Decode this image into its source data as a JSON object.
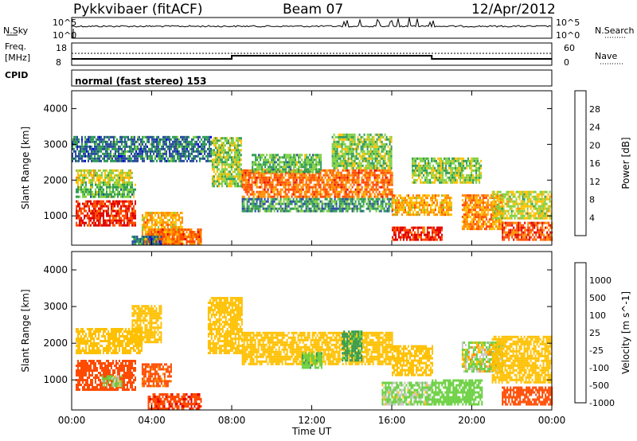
{
  "header": {
    "title": "Pykkvibaer (fitACF)",
    "beam": "Beam 07",
    "date": "12/Apr/2012"
  },
  "strips": {
    "nsky_label": "N.Sky",
    "nsky_ticks": [
      "10^5",
      "10^0"
    ],
    "nsearch_label": "N.Search",
    "nsearch_ticks": [
      "10^5",
      "10^0"
    ],
    "freq_label": "Freq.",
    "freq_unit": "[MHz]",
    "freq_ticks": [
      "18",
      "8"
    ],
    "nave_label": "Nave",
    "nave_ticks": [
      "60",
      "0"
    ],
    "cpid_label": "CPID",
    "cpid_value": "normal (fast stereo) 153"
  },
  "chart_data": [
    {
      "type": "heatmap",
      "name": "power",
      "xlabel": "",
      "ylabel": "Slant Range [km]",
      "x_ticks": [
        "00:00",
        "04:00",
        "08:00",
        "12:00",
        "16:00",
        "20:00",
        "00:00"
      ],
      "xlim_hours": [
        0,
        24
      ],
      "ylim": [
        180,
        4500
      ],
      "y_ticks": [
        1000,
        2000,
        3000,
        4000
      ],
      "colorbar": {
        "label": "Power [dB]",
        "ticks": [
          "28",
          "24",
          "20",
          "16",
          "12",
          "8",
          "4"
        ],
        "colors": [
          "#e00000",
          "#ff4a00",
          "#ff8c00",
          "#ffc000",
          "#7fd040",
          "#2f9a55",
          "#2a4aa0",
          "#0000e0"
        ]
      },
      "regions": [
        {
          "t": [
            0.2,
            3.0
          ],
          "r": [
            1900,
            2250
          ],
          "v": 14
        },
        {
          "t": [
            0.2,
            3.2
          ],
          "r": [
            1500,
            1850
          ],
          "v": 10
        },
        {
          "t": [
            0.2,
            3.2
          ],
          "r": [
            700,
            1400
          ],
          "v": 26
        },
        {
          "t": [
            3.5,
            5.5
          ],
          "r": [
            180,
            1100
          ],
          "v": 18
        },
        {
          "t": [
            3.8,
            6.5
          ],
          "r": [
            180,
            600
          ],
          "v": 22
        },
        {
          "t": [
            7.0,
            8.5
          ],
          "r": [
            1800,
            3200
          ],
          "v": 12
        },
        {
          "t": [
            8.5,
            16.0
          ],
          "r": [
            1500,
            2300
          ],
          "v": 22
        },
        {
          "t": [
            8.5,
            16.0
          ],
          "r": [
            1100,
            1500
          ],
          "v": 8
        },
        {
          "t": [
            9.0,
            12.5
          ],
          "r": [
            2200,
            2700
          ],
          "v": 10
        },
        {
          "t": [
            13.0,
            16.0
          ],
          "r": [
            2300,
            3300
          ],
          "v": 12
        },
        {
          "t": [
            16.0,
            18.5
          ],
          "r": [
            300,
            700
          ],
          "v": 26
        },
        {
          "t": [
            16.0,
            19.0
          ],
          "r": [
            1000,
            1600
          ],
          "v": 18
        },
        {
          "t": [
            17.0,
            20.5
          ],
          "r": [
            1900,
            2600
          ],
          "v": 12
        },
        {
          "t": [
            19.5,
            21.5
          ],
          "r": [
            600,
            1600
          ],
          "v": 20
        },
        {
          "t": [
            21.5,
            24.0
          ],
          "r": [
            300,
            800
          ],
          "v": 24
        },
        {
          "t": [
            21.0,
            24.0
          ],
          "r": [
            900,
            1700
          ],
          "v": 14
        },
        {
          "t": [
            0.0,
            7.0
          ],
          "r": [
            2500,
            3200
          ],
          "v": 6
        },
        {
          "t": [
            3.0,
            4.5
          ],
          "r": [
            180,
            400
          ],
          "v": 6
        }
      ]
    },
    {
      "type": "heatmap",
      "name": "velocity",
      "xlabel": "Time UT",
      "ylabel": "Slant Range [km]",
      "x_ticks": [
        "00:00",
        "04:00",
        "08:00",
        "12:00",
        "16:00",
        "20:00",
        "00:00"
      ],
      "xlim_hours": [
        0,
        24
      ],
      "ylim": [
        180,
        4500
      ],
      "y_ticks": [
        1000,
        2000,
        3000,
        4000
      ],
      "colorbar": {
        "label": "Velocity [m s^-1]",
        "ticks": [
          "1000",
          "500",
          "100",
          "25",
          "-25",
          "-100",
          "-500",
          "-1000"
        ],
        "colors": [
          "#2a4aa0",
          "#2f9a55",
          "#6ad040",
          "#c8c8c8",
          "#ffc000",
          "#ff8c00",
          "#ff4a00",
          "#e00000"
        ]
      },
      "regions": [
        {
          "t": [
            0.2,
            3.5
          ],
          "r": [
            1700,
            2400
          ],
          "v": 0
        },
        {
          "t": [
            0.2,
            3.2
          ],
          "r": [
            700,
            1500
          ],
          "v": -300
        },
        {
          "t": [
            1.5,
            2.5
          ],
          "r": [
            800,
            1100
          ],
          "v": 150
        },
        {
          "t": [
            3.5,
            5.0
          ],
          "r": [
            800,
            1400
          ],
          "v": -200
        },
        {
          "t": [
            3.8,
            6.5
          ],
          "r": [
            180,
            600
          ],
          "v": -400
        },
        {
          "t": [
            3.0,
            4.5
          ],
          "r": [
            2000,
            3000
          ],
          "v": 0
        },
        {
          "t": [
            6.8,
            8.5
          ],
          "r": [
            1700,
            3200
          ],
          "v": 0
        },
        {
          "t": [
            8.5,
            16.0
          ],
          "r": [
            1400,
            2300
          ],
          "v": 0
        },
        {
          "t": [
            11.5,
            12.5
          ],
          "r": [
            1300,
            1700
          ],
          "v": 400
        },
        {
          "t": [
            13.5,
            14.5
          ],
          "r": [
            1500,
            2300
          ],
          "v": 600
        },
        {
          "t": [
            15.5,
            18.0
          ],
          "r": [
            300,
            900
          ],
          "v": 150
        },
        {
          "t": [
            16.0,
            18.0
          ],
          "r": [
            1100,
            1900
          ],
          "v": 0
        },
        {
          "t": [
            18.0,
            20.5
          ],
          "r": [
            300,
            1000
          ],
          "v": 300
        },
        {
          "t": [
            19.5,
            21.5
          ],
          "r": [
            1200,
            2000
          ],
          "v": 80
        },
        {
          "t": [
            21.5,
            24.0
          ],
          "r": [
            300,
            800
          ],
          "v": -300
        },
        {
          "t": [
            21.0,
            24.0
          ],
          "r": [
            900,
            2200
          ],
          "v": 0
        }
      ]
    }
  ]
}
